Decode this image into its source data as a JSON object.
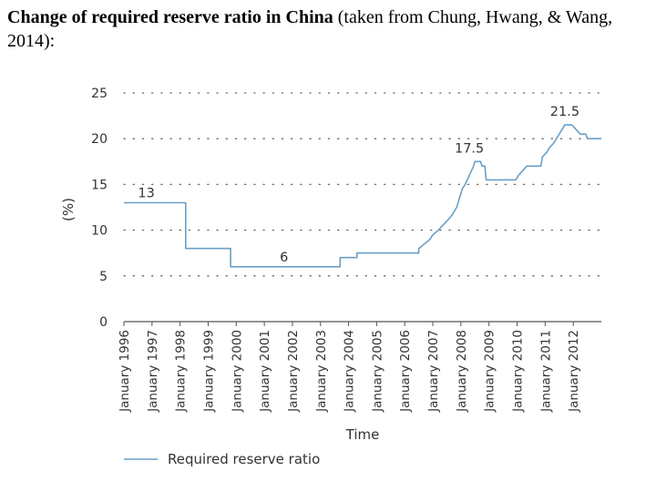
{
  "heading": {
    "bold": "Change of required reserve ratio in China",
    "rest": " (taken from Chung, Hwang, & Wang, 2014):"
  },
  "chart_data": {
    "type": "line",
    "xlabel": "Time",
    "ylabel": "(%)",
    "ylim": [
      0,
      25
    ],
    "yticks": [
      0,
      5,
      10,
      15,
      20,
      25
    ],
    "xlim": [
      1996.0,
      2013.0
    ],
    "x_ticks": [
      {
        "x": 1996,
        "label": "January 1996"
      },
      {
        "x": 1997,
        "label": "January 1997"
      },
      {
        "x": 1998,
        "label": "January 1998"
      },
      {
        "x": 1999,
        "label": "January 1999"
      },
      {
        "x": 2000,
        "label": "January 2000"
      },
      {
        "x": 2001,
        "label": "January 2001"
      },
      {
        "x": 2002,
        "label": "January 2002"
      },
      {
        "x": 2003,
        "label": "January 2003"
      },
      {
        "x": 2004,
        "label": "January 2004"
      },
      {
        "x": 2005,
        "label": "January 2005"
      },
      {
        "x": 2006,
        "label": "January 2006"
      },
      {
        "x": 2007,
        "label": "January 2007"
      },
      {
        "x": 2008,
        "label": "January 2008"
      },
      {
        "x": 2009,
        "label": "January 2009"
      },
      {
        "x": 2010,
        "label": "January 2010"
      },
      {
        "x": 2011,
        "label": "January 2011"
      },
      {
        "x": 2012,
        "label": "January 2012"
      }
    ],
    "grid": "horizontal-dotted",
    "legend_position": "bottom-left",
    "series": [
      {
        "name": "Required reserve ratio",
        "color": "#6a9fc7",
        "points": [
          [
            1996.0,
            13
          ],
          [
            1998.2,
            13
          ],
          [
            1998.2,
            8
          ],
          [
            1999.8,
            8
          ],
          [
            1999.8,
            6
          ],
          [
            2003.7,
            6
          ],
          [
            2003.7,
            7
          ],
          [
            2004.3,
            7
          ],
          [
            2004.3,
            7.5
          ],
          [
            2006.5,
            7.5
          ],
          [
            2006.5,
            8
          ],
          [
            2006.7,
            8.5
          ],
          [
            2006.9,
            9
          ],
          [
            2007.0,
            9.5
          ],
          [
            2007.2,
            10
          ],
          [
            2007.35,
            10.5
          ],
          [
            2007.5,
            11
          ],
          [
            2007.65,
            11.5
          ],
          [
            2007.75,
            12
          ],
          [
            2007.85,
            12.5
          ],
          [
            2007.95,
            13.5
          ],
          [
            2008.05,
            14.5
          ],
          [
            2008.15,
            15
          ],
          [
            2008.3,
            16
          ],
          [
            2008.45,
            17
          ],
          [
            2008.5,
            17.5
          ],
          [
            2008.7,
            17.5
          ],
          [
            2008.75,
            17
          ],
          [
            2008.85,
            17
          ],
          [
            2008.9,
            15.5
          ],
          [
            2009.95,
            15.5
          ],
          [
            2010.05,
            16
          ],
          [
            2010.2,
            16.5
          ],
          [
            2010.35,
            17
          ],
          [
            2010.85,
            17
          ],
          [
            2010.9,
            18
          ],
          [
            2011.05,
            18.5
          ],
          [
            2011.15,
            19
          ],
          [
            2011.3,
            19.5
          ],
          [
            2011.4,
            20
          ],
          [
            2011.5,
            20.5
          ],
          [
            2011.6,
            21
          ],
          [
            2011.7,
            21.5
          ],
          [
            2011.95,
            21.5
          ],
          [
            2012.1,
            21
          ],
          [
            2012.25,
            20.5
          ],
          [
            2012.45,
            20.5
          ],
          [
            2012.5,
            20
          ],
          [
            2013.0,
            20
          ]
        ]
      }
    ],
    "annotations": [
      {
        "text": "13",
        "x": 1996.8,
        "y": 13
      },
      {
        "text": "6",
        "x": 2001.7,
        "y": 6
      },
      {
        "text": "17.5",
        "x": 2008.3,
        "y": 17.5
      },
      {
        "text": "21.5",
        "x": 2011.7,
        "y": 21.5
      }
    ]
  }
}
